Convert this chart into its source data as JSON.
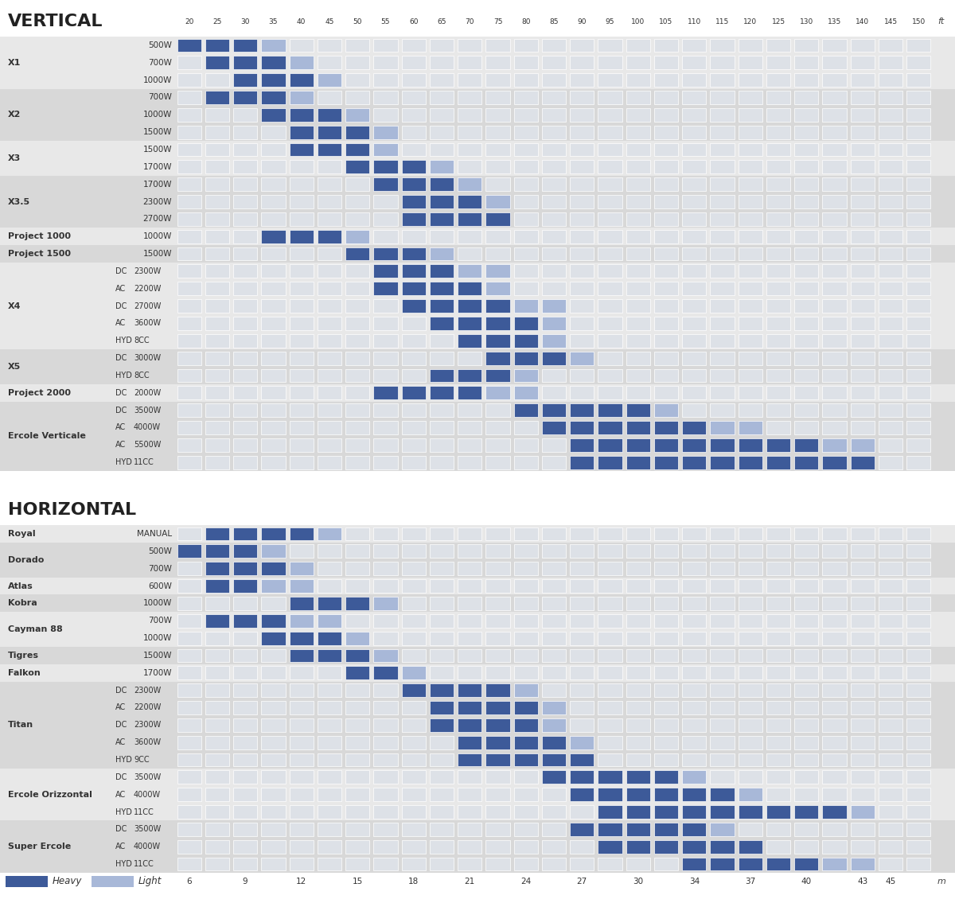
{
  "ft_labels": [
    20,
    25,
    30,
    35,
    40,
    45,
    50,
    55,
    60,
    65,
    70,
    75,
    80,
    85,
    90,
    95,
    100,
    105,
    110,
    115,
    120,
    125,
    130,
    135,
    140,
    145,
    150
  ],
  "m_labels": [
    6,
    9,
    12,
    15,
    18,
    21,
    24,
    27,
    30,
    34,
    37,
    40,
    43,
    45
  ],
  "m_ft_positions": [
    20,
    30,
    40,
    50,
    60,
    70,
    80,
    90,
    100,
    110,
    120,
    130,
    140,
    145
  ],
  "color_heavy": "#3d5a99",
  "color_light": "#a8b8d8",
  "color_empty": "#dde1e7",
  "color_bg_odd": "#e8e8e8",
  "color_bg_even": "#d8d8d8",
  "vertical_sections": [
    {
      "group": "X1",
      "rows": [
        {
          "label": "500W",
          "prefix": "",
          "heavy": [
            20,
            25,
            30
          ],
          "light": [
            35
          ]
        },
        {
          "label": "700W",
          "prefix": "",
          "heavy": [
            25,
            30,
            35
          ],
          "light": [
            40
          ]
        },
        {
          "label": "1000W",
          "prefix": "",
          "heavy": [
            30,
            35,
            40
          ],
          "light": [
            45
          ]
        }
      ]
    },
    {
      "group": "X2",
      "rows": [
        {
          "label": "700W",
          "prefix": "",
          "heavy": [
            25,
            30,
            35
          ],
          "light": [
            40
          ]
        },
        {
          "label": "1000W",
          "prefix": "",
          "heavy": [
            35,
            40,
            45
          ],
          "light": [
            50
          ]
        },
        {
          "label": "1500W",
          "prefix": "",
          "heavy": [
            40,
            45,
            50
          ],
          "light": [
            55
          ]
        }
      ]
    },
    {
      "group": "X3",
      "rows": [
        {
          "label": "1500W",
          "prefix": "",
          "heavy": [
            40,
            45,
            50
          ],
          "light": [
            55
          ]
        },
        {
          "label": "1700W",
          "prefix": "",
          "heavy": [
            50,
            55,
            60
          ],
          "light": [
            65
          ]
        }
      ]
    },
    {
      "group": "X3.5",
      "rows": [
        {
          "label": "1700W",
          "prefix": "",
          "heavy": [
            55,
            60,
            65
          ],
          "light": [
            70
          ]
        },
        {
          "label": "2300W",
          "prefix": "",
          "heavy": [
            60,
            65,
            70
          ],
          "light": [
            75
          ]
        },
        {
          "label": "2700W",
          "prefix": "",
          "heavy": [
            60,
            65,
            70,
            75
          ],
          "light": []
        }
      ]
    },
    {
      "group": "Project 1000",
      "rows": [
        {
          "label": "1000W",
          "prefix": "",
          "heavy": [
            35,
            40,
            45
          ],
          "light": [
            50
          ]
        }
      ]
    },
    {
      "group": "Project 1500",
      "rows": [
        {
          "label": "1500W",
          "prefix": "",
          "heavy": [
            50,
            55,
            60
          ],
          "light": [
            65
          ]
        }
      ]
    },
    {
      "group": "X4",
      "rows": [
        {
          "label": "2300W",
          "prefix": "DC",
          "heavy": [
            55,
            60,
            65
          ],
          "light": [
            70,
            75
          ]
        },
        {
          "label": "2200W",
          "prefix": "AC",
          "heavy": [
            55,
            60,
            65,
            70
          ],
          "light": [
            75
          ]
        },
        {
          "label": "2700W",
          "prefix": "DC",
          "heavy": [
            60,
            65,
            70,
            75
          ],
          "light": [
            80,
            85
          ]
        },
        {
          "label": "3600W",
          "prefix": "AC",
          "heavy": [
            65,
            70,
            75,
            80
          ],
          "light": [
            85
          ]
        },
        {
          "label": "8CC",
          "prefix": "HYD",
          "heavy": [
            70,
            75,
            80
          ],
          "light": [
            85
          ]
        }
      ]
    },
    {
      "group": "X5",
      "rows": [
        {
          "label": "3000W",
          "prefix": "DC",
          "heavy": [
            75,
            80,
            85
          ],
          "light": [
            90
          ]
        },
        {
          "label": "8CC",
          "prefix": "HYD",
          "heavy": [
            65,
            70,
            75
          ],
          "light": [
            80
          ]
        }
      ]
    },
    {
      "group": "Project 2000",
      "rows": [
        {
          "label": "2000W",
          "prefix": "DC",
          "heavy": [
            55,
            60,
            65,
            70
          ],
          "light": [
            75,
            80
          ]
        }
      ]
    },
    {
      "group": "Ercole Verticale",
      "rows": [
        {
          "label": "3500W",
          "prefix": "DC",
          "heavy": [
            80,
            85,
            90,
            95,
            100
          ],
          "light": [
            105
          ]
        },
        {
          "label": "4000W",
          "prefix": "AC",
          "heavy": [
            85,
            90,
            95,
            100,
            105,
            110
          ],
          "light": [
            115,
            120
          ]
        },
        {
          "label": "5500W",
          "prefix": "AC",
          "heavy": [
            90,
            95,
            100,
            105,
            110,
            115,
            120,
            125,
            130
          ],
          "light": [
            135,
            140
          ]
        },
        {
          "label": "11CC",
          "prefix": "HYD",
          "heavy": [
            90,
            95,
            100,
            105,
            110,
            115,
            120,
            125,
            130,
            135,
            140
          ],
          "light": []
        }
      ]
    }
  ],
  "horizontal_sections": [
    {
      "group": "Royal",
      "rows": [
        {
          "label": "MANUAL",
          "prefix": "",
          "heavy": [
            25,
            30,
            35,
            40
          ],
          "light": [
            45
          ]
        }
      ]
    },
    {
      "group": "Dorado",
      "rows": [
        {
          "label": "500W",
          "prefix": "",
          "heavy": [
            20,
            25,
            30
          ],
          "light": [
            35
          ]
        },
        {
          "label": "700W",
          "prefix": "",
          "heavy": [
            25,
            30,
            35
          ],
          "light": [
            40
          ]
        }
      ]
    },
    {
      "group": "Atlas",
      "rows": [
        {
          "label": "600W",
          "prefix": "",
          "heavy": [
            25,
            30
          ],
          "light": [
            35,
            40
          ]
        }
      ]
    },
    {
      "group": "Kobra",
      "rows": [
        {
          "label": "1000W",
          "prefix": "",
          "heavy": [
            40,
            45,
            50
          ],
          "light": [
            55
          ]
        }
      ]
    },
    {
      "group": "Cayman 88",
      "rows": [
        {
          "label": "700W",
          "prefix": "",
          "heavy": [
            25,
            30,
            35
          ],
          "light": [
            40,
            45
          ]
        },
        {
          "label": "1000W",
          "prefix": "",
          "heavy": [
            35,
            40,
            45
          ],
          "light": [
            50
          ]
        }
      ]
    },
    {
      "group": "Tigres",
      "rows": [
        {
          "label": "1500W",
          "prefix": "",
          "heavy": [
            40,
            45,
            50
          ],
          "light": [
            55
          ]
        }
      ]
    },
    {
      "group": "Falkon",
      "rows": [
        {
          "label": "1700W",
          "prefix": "",
          "heavy": [
            50,
            55
          ],
          "light": [
            60
          ]
        }
      ]
    },
    {
      "group": "Titan",
      "rows": [
        {
          "label": "2300W",
          "prefix": "DC",
          "heavy": [
            60,
            65,
            70,
            75
          ],
          "light": [
            80
          ]
        },
        {
          "label": "2200W",
          "prefix": "AC",
          "heavy": [
            65,
            70,
            75,
            80
          ],
          "light": [
            85
          ]
        },
        {
          "label": "2300W",
          "prefix": "DC",
          "heavy": [
            65,
            70,
            75,
            80
          ],
          "light": [
            85
          ]
        },
        {
          "label": "3600W",
          "prefix": "AC",
          "heavy": [
            70,
            75,
            80,
            85
          ],
          "light": [
            90
          ]
        },
        {
          "label": "9CC",
          "prefix": "HYD",
          "heavy": [
            70,
            75,
            80,
            85,
            90
          ],
          "light": []
        }
      ]
    },
    {
      "group": "Ercole Orizzontal",
      "rows": [
        {
          "label": "3500W",
          "prefix": "DC",
          "heavy": [
            85,
            90,
            95,
            100,
            105
          ],
          "light": [
            110
          ]
        },
        {
          "label": "4000W",
          "prefix": "AC",
          "heavy": [
            90,
            95,
            100,
            105,
            110,
            115
          ],
          "light": [
            120
          ]
        },
        {
          "label": "11CC",
          "prefix": "HYD",
          "heavy": [
            95,
            100,
            105,
            110,
            115,
            120,
            125,
            130,
            135
          ],
          "light": [
            140
          ]
        }
      ]
    },
    {
      "group": "Super Ercole",
      "rows": [
        {
          "label": "3500W",
          "prefix": "DC",
          "heavy": [
            90,
            95,
            100,
            105,
            110
          ],
          "light": [
            115
          ]
        },
        {
          "label": "4000W",
          "prefix": "AC",
          "heavy": [
            95,
            100,
            105,
            110,
            115,
            120
          ],
          "light": []
        },
        {
          "label": "11CC",
          "prefix": "HYD",
          "heavy": [
            110,
            115,
            120,
            125,
            130
          ],
          "light": [
            135,
            140
          ]
        }
      ]
    }
  ]
}
